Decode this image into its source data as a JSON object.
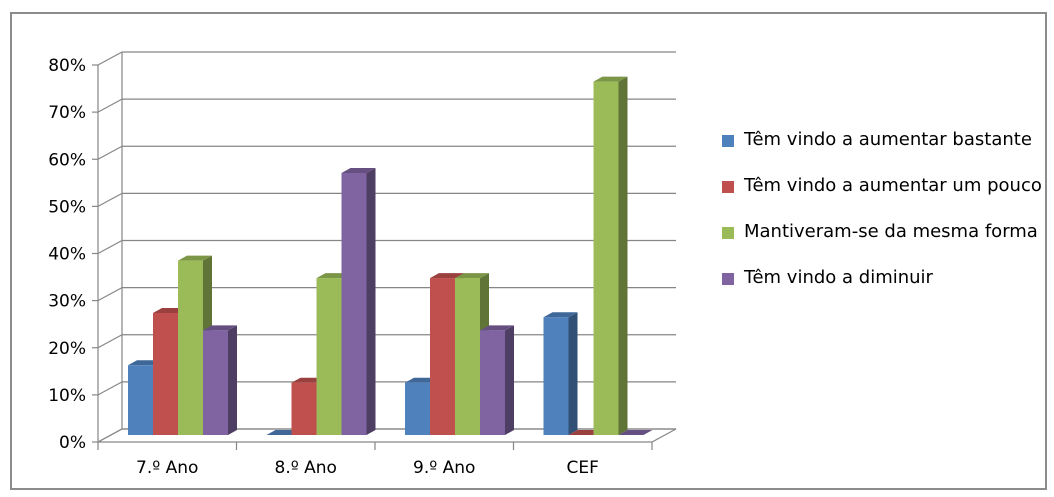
{
  "chart_data": {
    "type": "bar",
    "style": "3d-clustered-column",
    "categories": [
      "7.º Ano",
      "8.º Ano",
      "9.º Ano",
      "CEF"
    ],
    "series": [
      {
        "name": "Têm vindo a aumentar bastante",
        "color": "#4f81bd",
        "values": [
          14.8,
          0,
          11.1,
          25
        ]
      },
      {
        "name": "Têm vindo a aumentar um pouco",
        "color": "#c0504d",
        "values": [
          25.9,
          11.1,
          33.3,
          0
        ]
      },
      {
        "name": "Mantiveram-se da mesma forma",
        "color": "#9bbb59",
        "values": [
          37,
          33.3,
          33.3,
          75
        ]
      },
      {
        "name": "Têm vindo a diminuir",
        "color": "#8064a2",
        "values": [
          22.2,
          55.6,
          22.2,
          0
        ]
      }
    ],
    "ylim": [
      0,
      80
    ],
    "yticks": [
      "0%",
      "10%",
      "20%",
      "30%",
      "40%",
      "50%",
      "60%",
      "70%",
      "80%"
    ],
    "grid": true,
    "legend_position": "right"
  },
  "legend": {
    "items": [
      {
        "label": "Têm vindo a aumentar bastante",
        "color": "#4f81bd"
      },
      {
        "label": "Têm vindo a aumentar um pouco",
        "color": "#c0504d"
      },
      {
        "label": "Mantiveram-se da mesma forma",
        "color": "#9bbb59"
      },
      {
        "label": "Têm vindo a diminuir",
        "color": "#8064a2"
      }
    ]
  }
}
